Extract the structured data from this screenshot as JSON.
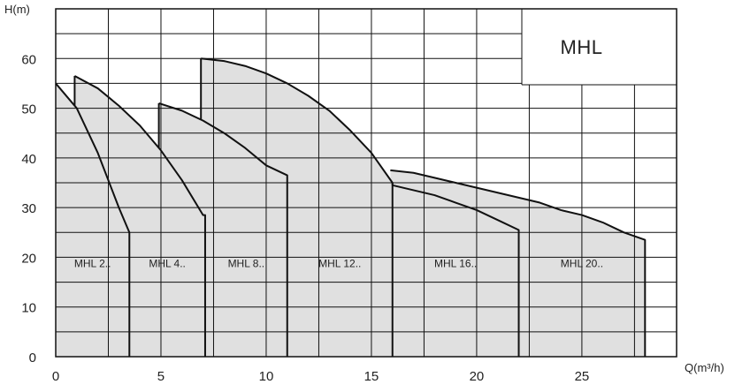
{
  "chart_data": {
    "type": "area",
    "title": "MHL",
    "xlabel": "Q(m³/h)",
    "ylabel": "H(m)",
    "xlim": [
      0,
      29.5
    ],
    "ylim": [
      0,
      70
    ],
    "x_ticks": [
      0,
      5,
      10,
      15,
      20,
      25
    ],
    "y_ticks": [
      0,
      10,
      20,
      30,
      40,
      50,
      60
    ],
    "grid": true,
    "series": [
      {
        "name": "MHL 2..",
        "x": [
          0,
          1,
          2,
          3,
          3.5
        ],
        "y": [
          55,
          50,
          41,
          30,
          25
        ]
      },
      {
        "name": "MHL 4..",
        "x": [
          0.9,
          2,
          3,
          4,
          5,
          6,
          7,
          7.1
        ],
        "y": [
          56.5,
          54,
          50.5,
          46.5,
          41.5,
          35.5,
          28.5,
          28.5
        ]
      },
      {
        "name": "MHL 8..",
        "x": [
          4.9,
          6,
          7,
          8,
          9,
          10,
          11
        ],
        "y": [
          51,
          49.5,
          47.5,
          45,
          42,
          38.5,
          36.5
        ]
      },
      {
        "name": "MHL 12..",
        "x": [
          6.9,
          8,
          9,
          10,
          11,
          12,
          13,
          14,
          15,
          16
        ],
        "y": [
          60,
          59.5,
          58.5,
          57,
          55,
          52.5,
          49.5,
          45.5,
          41,
          35
        ]
      },
      {
        "name": "MHL 16..",
        "x": [
          16,
          17,
          18,
          19,
          20,
          21,
          22
        ],
        "y": [
          34.5,
          33.5,
          32.5,
          31,
          29.5,
          27.5,
          25.5
        ]
      },
      {
        "name": "MHL 20..",
        "x": [
          15.9,
          17,
          18,
          19,
          20,
          21,
          22,
          23,
          24,
          25,
          26,
          27,
          28
        ],
        "y": [
          37.5,
          37,
          36,
          35,
          34,
          33,
          32,
          31,
          29.5,
          28.5,
          27,
          25,
          23.5
        ]
      }
    ]
  }
}
